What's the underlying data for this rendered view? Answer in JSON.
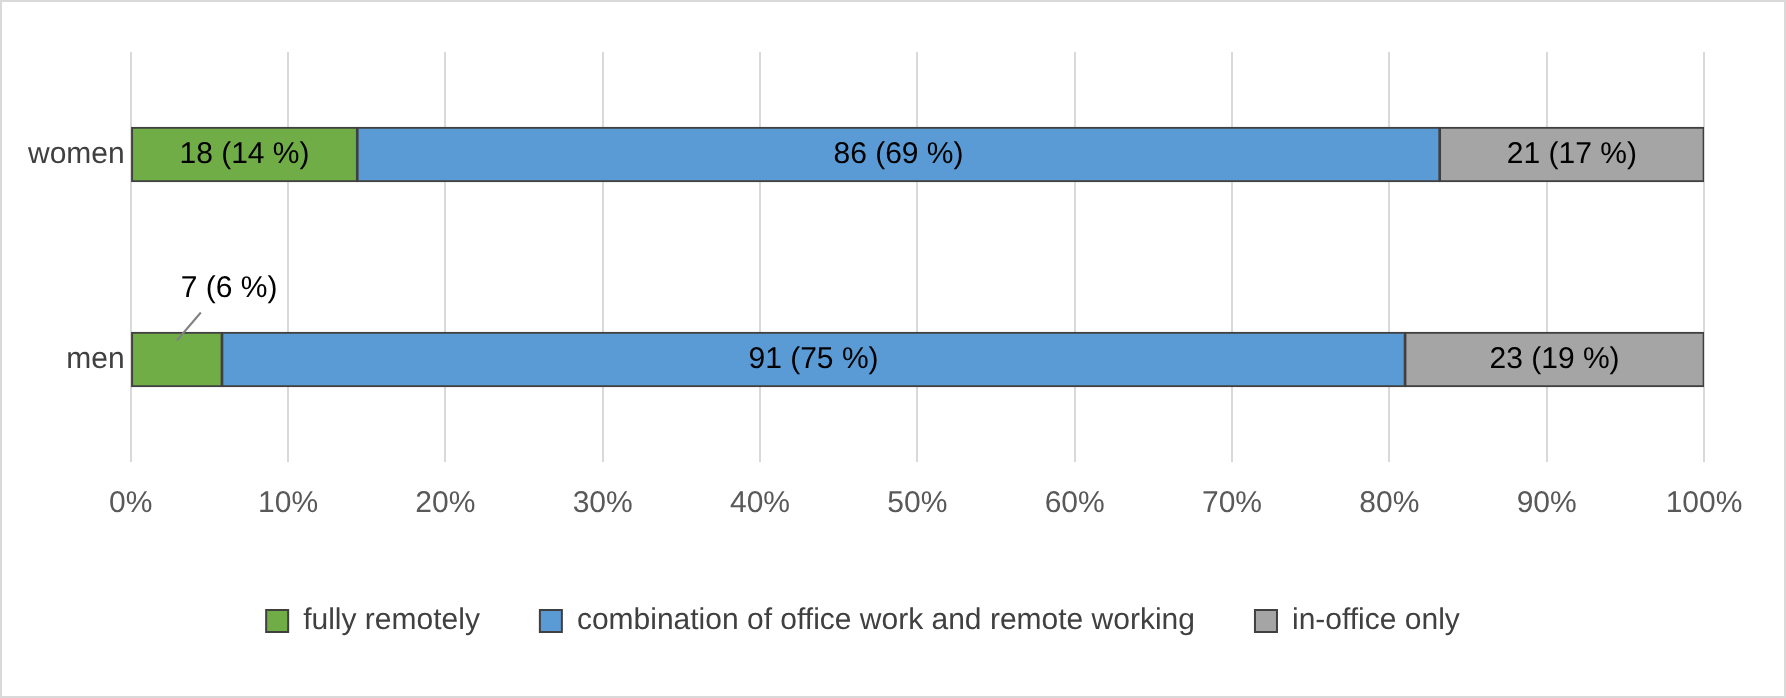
{
  "chart_data": {
    "type": "bar",
    "orientation": "horizontal",
    "stacked": true,
    "categories": [
      "women",
      "men"
    ],
    "series": [
      {
        "name": "fully remotely",
        "color": "#70ad47",
        "values": [
          14.4,
          5.8
        ],
        "value_labels": [
          "18 (14 %)",
          "7 (6 %)"
        ]
      },
      {
        "name": "combination of office work and remote working",
        "color": "#5b9bd5",
        "values": [
          68.8,
          75.2
        ],
        "value_labels": [
          "86 (69 %)",
          "91 (75 %)"
        ]
      },
      {
        "name": "in-office only",
        "color": "#a5a5a5",
        "values": [
          16.8,
          19.0
        ],
        "value_labels": [
          "21 (17 %)",
          "23 (19 %)"
        ]
      }
    ],
    "xlim": [
      0,
      100
    ],
    "xticks": [
      {
        "value": 0,
        "label": "0%"
      },
      {
        "value": 10,
        "label": "10%"
      },
      {
        "value": 20,
        "label": "20%"
      },
      {
        "value": 30,
        "label": "30%"
      },
      {
        "value": 40,
        "label": "40%"
      },
      {
        "value": 50,
        "label": "50%"
      },
      {
        "value": 60,
        "label": "60%"
      },
      {
        "value": 70,
        "label": "70%"
      },
      {
        "value": 80,
        "label": "80%"
      },
      {
        "value": 90,
        "label": "90%"
      },
      {
        "value": 100,
        "label": "100%"
      }
    ],
    "grid": "x",
    "legend": "bottom"
  }
}
